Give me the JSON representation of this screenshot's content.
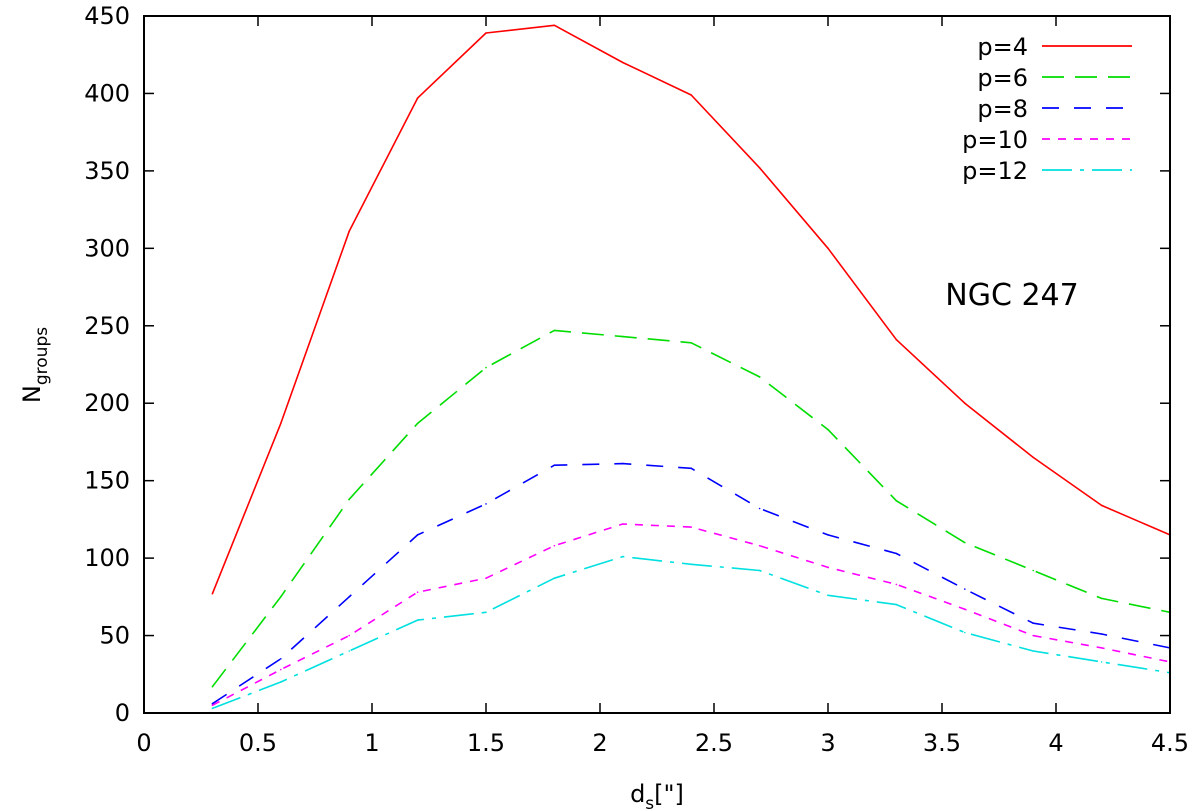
{
  "chart_data": {
    "type": "line",
    "title": "",
    "annotation": "NGC 247",
    "xlabel_main": "d",
    "xlabel_sub": "s",
    "xlabel_rest": "[\"]",
    "ylabel_main": "N",
    "ylabel_sub": "groups",
    "xlim": [
      0,
      4.5
    ],
    "ylim": [
      0,
      450
    ],
    "xticks": [
      0,
      0.5,
      1,
      1.5,
      2,
      2.5,
      3,
      3.5,
      4,
      4.5
    ],
    "xtick_labels": [
      "0",
      "0.5",
      "1",
      "1.5",
      "2",
      "2.5",
      "3",
      "3.5",
      "4",
      "4.5"
    ],
    "yticks": [
      0,
      50,
      100,
      150,
      200,
      250,
      300,
      350,
      400,
      450
    ],
    "ytick_labels": [
      "0",
      "50",
      "100",
      "150",
      "200",
      "250",
      "300",
      "350",
      "400",
      "450"
    ],
    "grid": false,
    "legend_position": "top-right",
    "x": [
      0.3,
      0.6,
      0.9,
      1.2,
      1.5,
      1.8,
      2.1,
      2.4,
      2.7,
      3.0,
      3.3,
      3.6,
      3.9,
      4.2,
      4.5
    ],
    "series": [
      {
        "name": "p=4",
        "color": "#ff0000",
        "dash": "solid",
        "values": [
          77,
          187,
          311,
          397,
          439,
          444,
          420,
          399,
          352,
          300,
          241,
          200,
          165,
          134,
          115
        ]
      },
      {
        "name": "p=6",
        "color": "#00dd00",
        "dash": "long",
        "values": [
          17,
          75,
          138,
          187,
          223,
          247,
          243,
          239,
          217,
          183,
          137,
          110,
          92,
          74,
          65
        ]
      },
      {
        "name": "p=8",
        "color": "#0000ff",
        "dash": "medium",
        "values": [
          6,
          35,
          75,
          115,
          135,
          160,
          161,
          158,
          132,
          115,
          103,
          80,
          58,
          51,
          42
        ]
      },
      {
        "name": "p=10",
        "color": "#ff00ff",
        "dash": "short",
        "values": [
          5,
          28,
          50,
          78,
          87,
          108,
          122,
          120,
          108,
          94,
          83,
          67,
          50,
          42,
          33
        ]
      },
      {
        "name": "p=12",
        "color": "#00e0e0",
        "dash": "dashdot",
        "values": [
          3,
          20,
          40,
          60,
          65,
          87,
          101,
          96,
          92,
          76,
          70,
          52,
          40,
          33,
          26
        ]
      }
    ]
  }
}
